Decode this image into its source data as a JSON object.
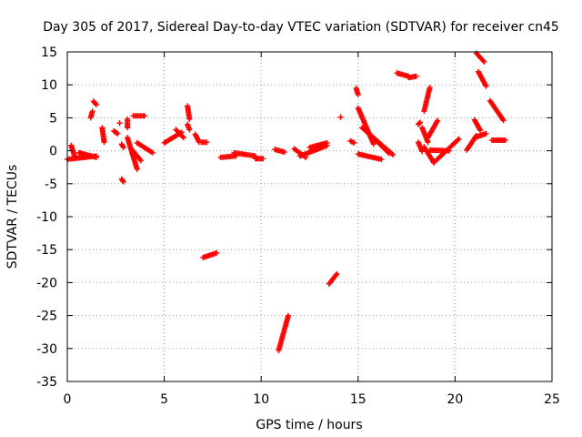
{
  "chart_data": {
    "type": "scatter",
    "title": "Day 305 of 2017, Sidereal Day-to-day VTEC variation (SDTVAR) for receiver cn45",
    "xlabel": "GPS time / hours",
    "ylabel": "SDTVAR / TECUs",
    "xlim": [
      0,
      25
    ],
    "ylim": [
      -35,
      15
    ],
    "xticks": [
      0,
      5,
      10,
      15,
      20,
      25
    ],
    "yticks": [
      -35,
      -30,
      -25,
      -20,
      -15,
      -10,
      -5,
      0,
      5,
      10,
      15
    ],
    "grid": true,
    "marker": "+",
    "color": "#ff0000",
    "segments": [
      {
        "from": [
          0.0,
          -1.3
        ],
        "to": [
          1.5,
          -0.8
        ]
      },
      {
        "from": [
          0.2,
          0.8
        ],
        "to": [
          0.4,
          -1.0
        ]
      },
      {
        "from": [
          0.6,
          -0.3
        ],
        "to": [
          1.5,
          -1.0
        ]
      },
      {
        "from": [
          1.2,
          5.0
        ],
        "to": [
          1.3,
          6.0
        ]
      },
      {
        "from": [
          1.35,
          7.5
        ],
        "to": [
          1.5,
          7.0
        ]
      },
      {
        "from": [
          1.8,
          3.5
        ],
        "to": [
          1.9,
          1.3
        ]
      },
      {
        "from": [
          2.4,
          3.0
        ],
        "to": [
          2.6,
          2.6
        ]
      },
      {
        "from": [
          2.7,
          4.2
        ],
        "to": [
          2.7,
          4.2
        ]
      },
      {
        "from": [
          2.8,
          1.0
        ],
        "to": [
          2.9,
          0.5
        ]
      },
      {
        "from": [
          2.8,
          -4.3
        ],
        "to": [
          2.9,
          -4.7
        ]
      },
      {
        "from": [
          3.1,
          4.8
        ],
        "to": [
          3.1,
          3.5
        ]
      },
      {
        "from": [
          3.4,
          5.3
        ],
        "to": [
          4.0,
          5.3
        ]
      },
      {
        "from": [
          3.1,
          2.0
        ],
        "to": [
          3.6,
          -2.8
        ]
      },
      {
        "from": [
          3.3,
          0.3
        ],
        "to": [
          3.8,
          -1.5
        ]
      },
      {
        "from": [
          3.6,
          1.2
        ],
        "to": [
          4.4,
          -0.3
        ]
      },
      {
        "from": [
          5.0,
          1.2
        ],
        "to": [
          5.9,
          2.8
        ]
      },
      {
        "from": [
          5.6,
          3.2
        ],
        "to": [
          6.0,
          2.0
        ]
      },
      {
        "from": [
          6.2,
          6.8
        ],
        "to": [
          6.3,
          4.8
        ]
      },
      {
        "from": [
          6.2,
          4.0
        ],
        "to": [
          6.3,
          3.2
        ]
      },
      {
        "from": [
          6.6,
          2.5
        ],
        "to": [
          6.8,
          1.3
        ]
      },
      {
        "from": [
          6.9,
          1.3
        ],
        "to": [
          7.2,
          1.3
        ]
      },
      {
        "from": [
          7.0,
          -16.2
        ],
        "to": [
          7.7,
          -15.5
        ]
      },
      {
        "from": [
          7.9,
          -1.0
        ],
        "to": [
          8.7,
          -0.8
        ]
      },
      {
        "from": [
          8.6,
          -0.3
        ],
        "to": [
          9.7,
          -0.8
        ]
      },
      {
        "from": [
          9.7,
          -1.2
        ],
        "to": [
          10.1,
          -1.2
        ]
      },
      {
        "from": [
          10.7,
          0.2
        ],
        "to": [
          11.2,
          -0.2
        ]
      },
      {
        "from": [
          10.9,
          -30.3
        ],
        "to": [
          11.4,
          -25.0
        ]
      },
      {
        "from": [
          11.7,
          0.3
        ],
        "to": [
          12.3,
          -1.0
        ]
      },
      {
        "from": [
          12.0,
          -0.8
        ],
        "to": [
          13.4,
          0.8
        ]
      },
      {
        "from": [
          12.5,
          0.5
        ],
        "to": [
          13.4,
          1.2
        ]
      },
      {
        "from": [
          13.5,
          -20.2
        ],
        "to": [
          13.9,
          -18.7
        ]
      },
      {
        "from": [
          14.1,
          5.1
        ],
        "to": [
          14.1,
          5.1
        ]
      },
      {
        "from": [
          14.6,
          1.5
        ],
        "to": [
          14.8,
          1.2
        ]
      },
      {
        "from": [
          14.9,
          9.5
        ],
        "to": [
          15.0,
          8.5
        ]
      },
      {
        "from": [
          15.0,
          6.5
        ],
        "to": [
          15.8,
          1.0
        ]
      },
      {
        "from": [
          15.0,
          -0.5
        ],
        "to": [
          16.2,
          -1.3
        ]
      },
      {
        "from": [
          15.2,
          3.5
        ],
        "to": [
          16.8,
          -0.6
        ]
      },
      {
        "from": [
          15.6,
          2.5
        ],
        "to": [
          16.6,
          -0.4
        ]
      },
      {
        "from": [
          17.0,
          11.8
        ],
        "to": [
          17.6,
          11.3
        ]
      },
      {
        "from": [
          17.6,
          11.1
        ],
        "to": [
          18.0,
          11.3
        ]
      },
      {
        "from": [
          18.1,
          4.0
        ],
        "to": [
          18.2,
          4.3
        ]
      },
      {
        "from": [
          18.1,
          1.3
        ],
        "to": [
          18.3,
          -0.1
        ]
      },
      {
        "from": [
          18.3,
          3.5
        ],
        "to": [
          18.6,
          1.3
        ]
      },
      {
        "from": [
          18.4,
          6.0
        ],
        "to": [
          18.7,
          9.6
        ]
      },
      {
        "from": [
          18.4,
          0.6
        ],
        "to": [
          18.9,
          -1.8
        ]
      },
      {
        "from": [
          18.6,
          2.0
        ],
        "to": [
          19.1,
          4.6
        ]
      },
      {
        "from": [
          18.9,
          -1.8
        ],
        "to": [
          20.2,
          1.8
        ]
      },
      {
        "from": [
          18.7,
          0.1
        ],
        "to": [
          19.7,
          0.0
        ]
      },
      {
        "from": [
          20.6,
          0.1
        ],
        "to": [
          21.1,
          2.3
        ]
      },
      {
        "from": [
          21.0,
          4.7
        ],
        "to": [
          21.3,
          3.1
        ]
      },
      {
        "from": [
          21.1,
          2.1
        ],
        "to": [
          21.6,
          2.6
        ]
      },
      {
        "from": [
          21.1,
          14.8
        ],
        "to": [
          21.5,
          13.5
        ]
      },
      {
        "from": [
          21.2,
          12.0
        ],
        "to": [
          21.6,
          9.8
        ]
      },
      {
        "from": [
          21.8,
          7.6
        ],
        "to": [
          22.5,
          4.6
        ]
      },
      {
        "from": [
          21.9,
          1.6
        ],
        "to": [
          22.6,
          1.6
        ]
      }
    ]
  }
}
